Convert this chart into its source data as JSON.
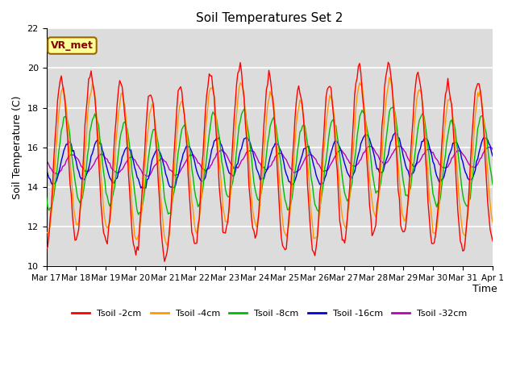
{
  "title": "Soil Temperatures Set 2",
  "xlabel": "Time",
  "ylabel": "Soil Temperature (C)",
  "ylim": [
    10,
    22
  ],
  "yticks": [
    10,
    12,
    14,
    16,
    18,
    20,
    22
  ],
  "colors": {
    "Tsoil -2cm": "#FF0000",
    "Tsoil -4cm": "#FF9900",
    "Tsoil -8cm": "#00BB00",
    "Tsoil -16cm": "#0000DD",
    "Tsoil -32cm": "#BB00BB"
  },
  "legend_labels": [
    "Tsoil -2cm",
    "Tsoil -4cm",
    "Tsoil -8cm",
    "Tsoil -16cm",
    "Tsoil -32cm"
  ],
  "bg_color": "#DCDCDC",
  "grid_color": "#FFFFFF",
  "annotation_text": "VR_met",
  "annotation_bbox_facecolor": "#FFFF99",
  "annotation_bbox_edgecolor": "#996600",
  "annotation_color": "#880000",
  "n_days": 15,
  "amp_2cm": 4.2,
  "amp_4cm": 3.5,
  "amp_8cm": 2.2,
  "amp_16cm": 1.0,
  "amp_32cm": 0.45,
  "base_mean": 15.0,
  "base_slope": 0.04,
  "phase_2cm": -1.5707963,
  "phase_4cm": -1.8707963,
  "phase_8cm": -2.3707963,
  "phase_16cm": -3.0707963,
  "phase_32cm": -3.8707963,
  "variation_amp": 0.6,
  "variation_period": 5.0,
  "title_fontsize": 11,
  "axis_label_fontsize": 9,
  "tick_fontsize": 7.5,
  "legend_fontsize": 8
}
